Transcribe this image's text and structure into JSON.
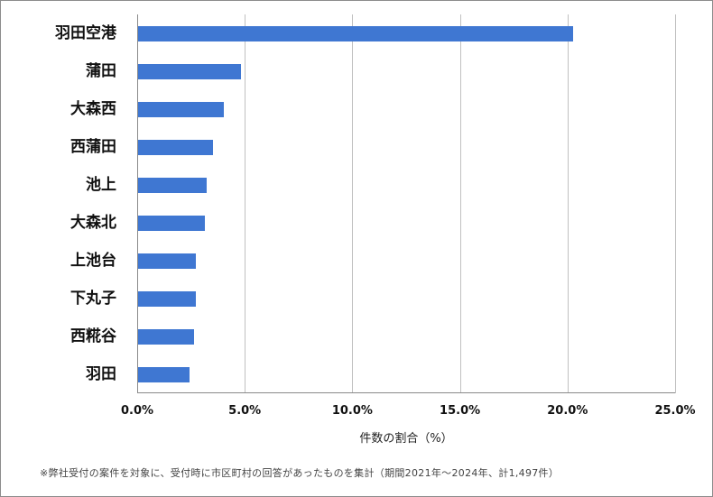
{
  "chart_data": {
    "type": "bar",
    "orientation": "horizontal",
    "title": "",
    "categories": [
      "羽田空港",
      "蒲田",
      "大森西",
      "西蒲田",
      "池上",
      "大森北",
      "上池台",
      "下丸子",
      "西糀谷",
      "羽田"
    ],
    "values": [
      20.2,
      4.8,
      4.0,
      3.5,
      3.2,
      3.1,
      2.7,
      2.7,
      2.6,
      2.4
    ],
    "xlabel": "件数の割合（%）",
    "ylabel": "",
    "xlim": [
      0,
      25
    ],
    "xticks": [
      "0.0%",
      "5.0%",
      "10.0%",
      "15.0%",
      "20.0%",
      "25.0%"
    ],
    "grid": "vertical",
    "legend": "none",
    "bar_color": "#3f77d2",
    "footnote": "※弊社受付の案件を対象に、受付時に市区町村の回答があったものを集計（期間2021年～2024年、計1,497件）"
  }
}
